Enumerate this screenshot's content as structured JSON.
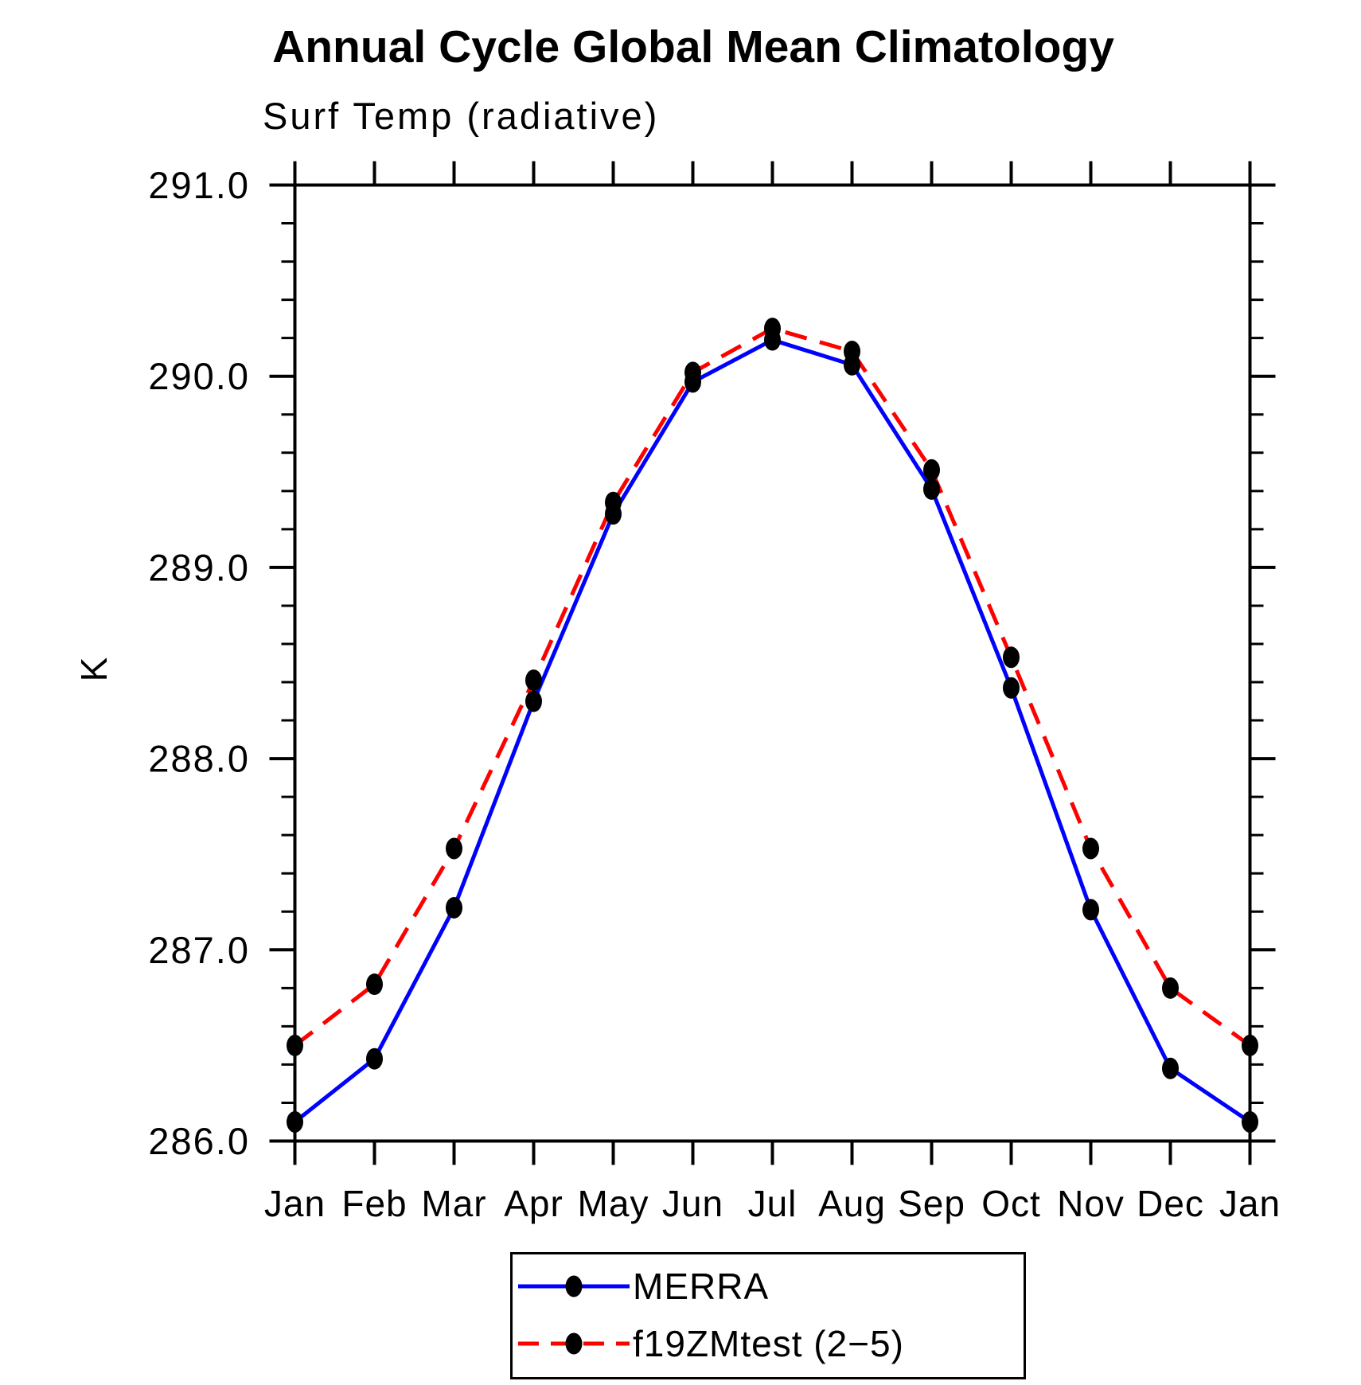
{
  "title": "Annual Cycle Global Mean Climatology",
  "subtitle": "Surf Temp (radiative)",
  "y_axis_title": "K",
  "chart_data": {
    "type": "line",
    "title": "Annual Cycle Global Mean Climatology",
    "subtitle": "Surf Temp (radiative)",
    "ylabel": "K",
    "xlabel": "",
    "ylim": [
      286.0,
      291.0
    ],
    "y_major_step": 1.0,
    "y_minor_step": 0.2,
    "grid": false,
    "legend_position": "bottom-center",
    "x_tick_labels": [
      "Jan",
      "Feb",
      "Mar",
      "Apr",
      "May",
      "Jun",
      "Jul",
      "Aug",
      "Sep",
      "Oct",
      "Nov",
      "Dec",
      "Jan"
    ],
    "y_tick_labels": [
      "286.0",
      "287.0",
      "288.0",
      "289.0",
      "290.0",
      "291.0"
    ],
    "series": [
      {
        "name": "MERRA",
        "color": "#0000ff",
        "line_style": "solid",
        "marker": "filled-dot",
        "marker_color": "#000000",
        "values": [
          286.1,
          286.43,
          287.22,
          288.3,
          289.28,
          289.97,
          290.19,
          290.06,
          289.41,
          288.37,
          287.21,
          286.38,
          286.1
        ]
      },
      {
        "name": "f19ZMtest (2−5)",
        "color": "#ff0000",
        "line_style": "dashed",
        "marker": "filled-dot",
        "marker_color": "#000000",
        "values": [
          286.5,
          286.82,
          287.53,
          288.41,
          289.34,
          290.02,
          290.25,
          290.13,
          289.51,
          288.53,
          287.53,
          286.8,
          286.5
        ]
      }
    ]
  },
  "legend": {
    "items": [
      {
        "label": "MERRA"
      },
      {
        "label": "f19ZMtest (2−5)"
      }
    ]
  }
}
